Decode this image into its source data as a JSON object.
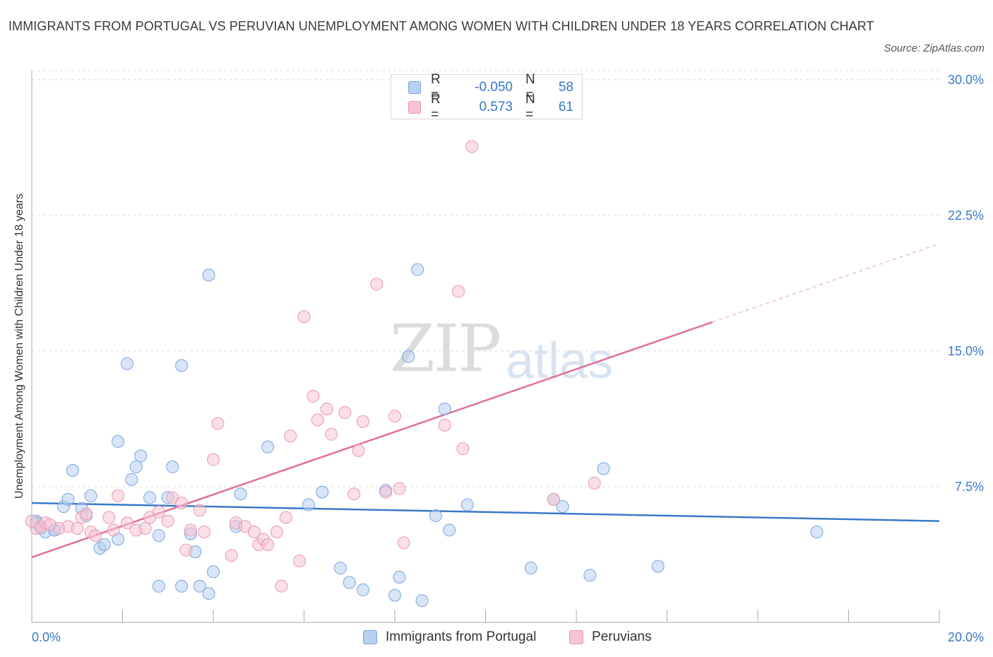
{
  "title": "IMMIGRANTS FROM PORTUGAL VS PERUVIAN UNEMPLOYMENT AMONG WOMEN WITH CHILDREN UNDER 18 YEARS CORRELATION CHART",
  "source": "Source: ZipAtlas.com",
  "watermark": {
    "zip": "ZIP",
    "atlas": "atlas"
  },
  "colors": {
    "blue": "#3a78c8",
    "blue_fill": "#b8d0f0",
    "pink": "#e07098",
    "pink_fill": "#f5c4d4",
    "grid": "#dcdcdc"
  },
  "legend": {
    "r_label": "R =",
    "n_label": "N =",
    "rows": [
      {
        "r": "-0.050",
        "n": "58"
      },
      {
        "r": "0.573",
        "n": "61"
      }
    ]
  },
  "bottom_legend": [
    "Immigrants from Portugal",
    "Peruvians"
  ],
  "chart_data": {
    "type": "scatter",
    "title": "IMMIGRANTS FROM PORTUGAL VS PERUVIAN UNEMPLOYMENT AMONG WOMEN WITH CHILDREN UNDER 18 YEARS CORRELATION CHART",
    "xlabel": "",
    "ylabel": "Unemployment Among Women with Children Under 18 years",
    "xlim": [
      0,
      20
    ],
    "ylim": [
      0,
      30.5
    ],
    "x_tick_labels": [
      "0.0%",
      "20.0%"
    ],
    "y_ticks": [
      7.5,
      15.0,
      22.5,
      30.0
    ],
    "y_tick_labels": [
      "7.5%",
      "15.0%",
      "22.5%",
      "30.0%"
    ],
    "grid": "horizontal dashed",
    "legend_placement": "top-center",
    "series": [
      {
        "name": "Immigrants from Portugal",
        "r": -0.05,
        "n": 58,
        "trend": {
          "x": [
            0,
            20
          ],
          "y": [
            6.6,
            5.6
          ]
        },
        "points": [
          [
            0.1,
            5.6
          ],
          [
            0.2,
            5.2
          ],
          [
            0.3,
            5.0
          ],
          [
            0.5,
            5.1
          ],
          [
            0.7,
            6.4
          ],
          [
            0.8,
            6.8
          ],
          [
            0.9,
            8.4
          ],
          [
            1.1,
            6.3
          ],
          [
            1.2,
            5.9
          ],
          [
            1.3,
            7.0
          ],
          [
            1.5,
            4.1
          ],
          [
            1.6,
            4.3
          ],
          [
            1.9,
            4.6
          ],
          [
            1.9,
            10.0
          ],
          [
            2.1,
            14.3
          ],
          [
            2.2,
            7.9
          ],
          [
            2.3,
            8.6
          ],
          [
            2.4,
            9.2
          ],
          [
            2.6,
            6.9
          ],
          [
            2.8,
            2.0
          ],
          [
            2.8,
            4.8
          ],
          [
            3.0,
            6.9
          ],
          [
            3.1,
            8.6
          ],
          [
            3.3,
            14.2
          ],
          [
            3.3,
            2.0
          ],
          [
            3.5,
            4.9
          ],
          [
            3.6,
            3.9
          ],
          [
            3.7,
            2.0
          ],
          [
            3.9,
            19.2
          ],
          [
            3.9,
            1.6
          ],
          [
            4.0,
            2.8
          ],
          [
            4.5,
            5.3
          ],
          [
            4.6,
            7.1
          ],
          [
            5.2,
            9.7
          ],
          [
            6.1,
            6.5
          ],
          [
            6.4,
            7.2
          ],
          [
            6.8,
            3.0
          ],
          [
            7.0,
            2.2
          ],
          [
            7.3,
            1.8
          ],
          [
            7.8,
            7.3
          ],
          [
            8.0,
            1.5
          ],
          [
            8.1,
            2.5
          ],
          [
            8.3,
            14.7
          ],
          [
            8.5,
            19.5
          ],
          [
            8.6,
            1.2
          ],
          [
            8.9,
            5.9
          ],
          [
            9.1,
            11.8
          ],
          [
            9.2,
            5.1
          ],
          [
            9.6,
            6.5
          ],
          [
            11.0,
            3.0
          ],
          [
            11.5,
            6.8
          ],
          [
            11.7,
            6.4
          ],
          [
            12.3,
            2.6
          ],
          [
            12.6,
            8.5
          ],
          [
            13.8,
            3.1
          ],
          [
            17.3,
            5.0
          ],
          [
            0.1,
            5.5
          ],
          [
            0.5,
            5.1
          ]
        ]
      },
      {
        "name": "Peruvians",
        "r": 0.573,
        "n": 61,
        "trend": {
          "x": [
            0,
            15
          ],
          "y": [
            3.6,
            16.6
          ]
        },
        "points": [
          [
            0.1,
            5.2
          ],
          [
            0.2,
            5.3
          ],
          [
            0.3,
            5.5
          ],
          [
            0.6,
            5.2
          ],
          [
            0.8,
            5.3
          ],
          [
            1.0,
            5.2
          ],
          [
            1.1,
            5.8
          ],
          [
            1.2,
            6.0
          ],
          [
            1.3,
            5.0
          ],
          [
            1.4,
            4.8
          ],
          [
            1.7,
            5.8
          ],
          [
            1.8,
            5.1
          ],
          [
            1.9,
            7.0
          ],
          [
            2.1,
            5.5
          ],
          [
            2.3,
            5.1
          ],
          [
            2.5,
            5.2
          ],
          [
            2.6,
            5.8
          ],
          [
            2.8,
            6.1
          ],
          [
            3.0,
            5.6
          ],
          [
            3.1,
            6.9
          ],
          [
            3.3,
            6.6
          ],
          [
            3.4,
            4.0
          ],
          [
            3.5,
            5.1
          ],
          [
            3.7,
            6.2
          ],
          [
            3.8,
            5.0
          ],
          [
            4.0,
            9.0
          ],
          [
            4.1,
            11.0
          ],
          [
            4.4,
            3.7
          ],
          [
            4.5,
            5.5
          ],
          [
            4.7,
            5.3
          ],
          [
            4.9,
            5.0
          ],
          [
            5.0,
            4.3
          ],
          [
            5.1,
            4.6
          ],
          [
            5.2,
            4.3
          ],
          [
            5.4,
            5.0
          ],
          [
            5.5,
            2.0
          ],
          [
            5.6,
            5.8
          ],
          [
            5.7,
            10.3
          ],
          [
            5.9,
            3.4
          ],
          [
            6.0,
            16.9
          ],
          [
            6.2,
            12.5
          ],
          [
            6.3,
            11.2
          ],
          [
            6.5,
            11.8
          ],
          [
            6.6,
            10.4
          ],
          [
            6.9,
            11.6
          ],
          [
            7.1,
            7.1
          ],
          [
            7.2,
            9.5
          ],
          [
            7.3,
            11.1
          ],
          [
            7.6,
            18.7
          ],
          [
            7.8,
            7.2
          ],
          [
            8.0,
            11.4
          ],
          [
            8.1,
            7.4
          ],
          [
            8.2,
            4.4
          ],
          [
            9.1,
            10.9
          ],
          [
            9.4,
            18.3
          ],
          [
            9.5,
            9.6
          ],
          [
            9.7,
            26.3
          ],
          [
            11.5,
            6.8
          ],
          [
            12.4,
            7.7
          ],
          [
            0.0,
            5.6
          ],
          [
            0.4,
            5.4
          ]
        ]
      }
    ]
  }
}
